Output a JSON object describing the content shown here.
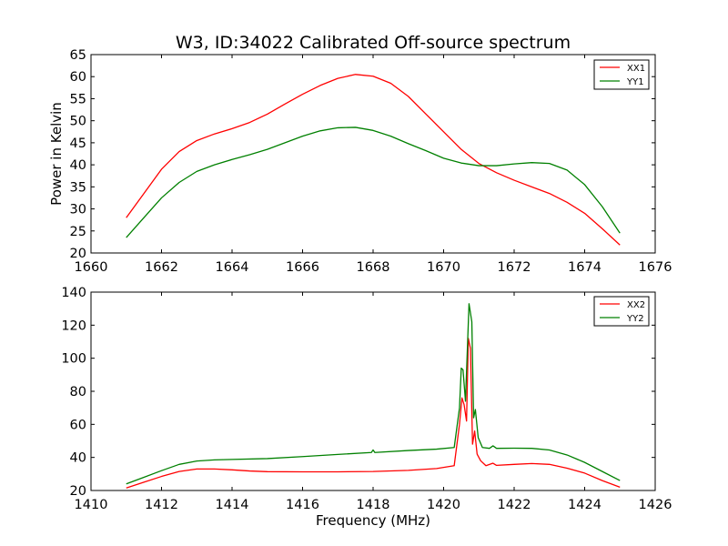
{
  "chart_data": [
    {
      "type": "line",
      "title": "W3, ID:34022 Calibrated Off-source spectrum",
      "xlabel": "",
      "ylabel": "Power in Kelvin",
      "xlim": [
        1660,
        1676
      ],
      "ylim": [
        20,
        65
      ],
      "xticks": [
        1660,
        1662,
        1664,
        1666,
        1668,
        1670,
        1672,
        1674,
        1676
      ],
      "yticks": [
        20,
        25,
        30,
        35,
        40,
        45,
        50,
        55,
        60,
        65
      ],
      "legend_position": "top-right",
      "series": [
        {
          "name": "XX1",
          "color": "#ff0000",
          "points": [
            [
              1661.0,
              28.0
            ],
            [
              1661.5,
              33.5
            ],
            [
              1662.0,
              39.0
            ],
            [
              1662.5,
              43.0
            ],
            [
              1663.0,
              45.5
            ],
            [
              1663.5,
              47.0
            ],
            [
              1664.0,
              48.2
            ],
            [
              1664.5,
              49.6
            ],
            [
              1665.0,
              51.5
            ],
            [
              1665.5,
              53.8
            ],
            [
              1666.0,
              56.0
            ],
            [
              1666.5,
              58.0
            ],
            [
              1667.0,
              59.6
            ],
            [
              1667.5,
              60.5
            ],
            [
              1668.0,
              60.1
            ],
            [
              1668.5,
              58.5
            ],
            [
              1669.0,
              55.5
            ],
            [
              1669.5,
              51.5
            ],
            [
              1670.0,
              47.5
            ],
            [
              1670.5,
              43.5
            ],
            [
              1671.0,
              40.3
            ],
            [
              1671.5,
              38.2
            ],
            [
              1672.0,
              36.5
            ],
            [
              1672.5,
              35.0
            ],
            [
              1673.0,
              33.5
            ],
            [
              1673.5,
              31.5
            ],
            [
              1674.0,
              29.0
            ],
            [
              1674.5,
              25.5
            ],
            [
              1675.0,
              21.8
            ]
          ]
        },
        {
          "name": "YY1",
          "color": "#008000",
          "points": [
            [
              1661.0,
              23.5
            ],
            [
              1661.5,
              28.0
            ],
            [
              1662.0,
              32.5
            ],
            [
              1662.5,
              36.0
            ],
            [
              1663.0,
              38.5
            ],
            [
              1663.5,
              40.0
            ],
            [
              1664.0,
              41.2
            ],
            [
              1664.5,
              42.3
            ],
            [
              1665.0,
              43.5
            ],
            [
              1665.5,
              45.0
            ],
            [
              1666.0,
              46.5
            ],
            [
              1666.5,
              47.7
            ],
            [
              1667.0,
              48.4
            ],
            [
              1667.5,
              48.5
            ],
            [
              1668.0,
              47.8
            ],
            [
              1668.5,
              46.5
            ],
            [
              1669.0,
              44.8
            ],
            [
              1669.5,
              43.2
            ],
            [
              1670.0,
              41.5
            ],
            [
              1670.5,
              40.4
            ],
            [
              1671.0,
              39.8
            ],
            [
              1671.5,
              39.8
            ],
            [
              1672.0,
              40.2
            ],
            [
              1672.5,
              40.5
            ],
            [
              1673.0,
              40.3
            ],
            [
              1673.5,
              38.8
            ],
            [
              1674.0,
              35.5
            ],
            [
              1674.5,
              30.5
            ],
            [
              1675.0,
              24.5
            ]
          ]
        }
      ]
    },
    {
      "type": "line",
      "title": "",
      "xlabel": "Frequency (MHz)",
      "ylabel": "",
      "xlim": [
        1410,
        1426
      ],
      "ylim": [
        20,
        140
      ],
      "xticks": [
        1410,
        1412,
        1414,
        1416,
        1418,
        1420,
        1422,
        1424,
        1426
      ],
      "yticks": [
        20,
        40,
        60,
        80,
        100,
        120,
        140
      ],
      "legend_position": "top-right",
      "series": [
        {
          "name": "XX2",
          "color": "#ff0000",
          "points": [
            [
              1411.0,
              21.5
            ],
            [
              1411.5,
              25.0
            ],
            [
              1412.0,
              28.5
            ],
            [
              1412.5,
              31.5
            ],
            [
              1413.0,
              33.0
            ],
            [
              1413.5,
              33.0
            ],
            [
              1414.0,
              32.5
            ],
            [
              1414.5,
              31.8
            ],
            [
              1415.0,
              31.4
            ],
            [
              1416.0,
              31.3
            ],
            [
              1417.0,
              31.3
            ],
            [
              1418.0,
              31.5
            ],
            [
              1419.0,
              32.2
            ],
            [
              1419.8,
              33.3
            ],
            [
              1420.3,
              35.0
            ],
            [
              1420.45,
              60.0
            ],
            [
              1420.52,
              76.0
            ],
            [
              1420.58,
              72.0
            ],
            [
              1420.65,
              62.0
            ],
            [
              1420.7,
              112.0
            ],
            [
              1420.76,
              106.0
            ],
            [
              1420.82,
              48.0
            ],
            [
              1420.88,
              56.0
            ],
            [
              1420.95,
              42.0
            ],
            [
              1421.05,
              38.0
            ],
            [
              1421.2,
              35.0
            ],
            [
              1421.4,
              36.5
            ],
            [
              1421.5,
              35.2
            ],
            [
              1422.0,
              35.8
            ],
            [
              1422.5,
              36.3
            ],
            [
              1423.0,
              35.8
            ],
            [
              1423.5,
              33.5
            ],
            [
              1424.0,
              30.5
            ],
            [
              1424.5,
              26.0
            ],
            [
              1425.0,
              22.0
            ]
          ]
        },
        {
          "name": "YY2",
          "color": "#008000",
          "points": [
            [
              1411.0,
              24.0
            ],
            [
              1411.5,
              28.0
            ],
            [
              1412.0,
              32.0
            ],
            [
              1412.5,
              35.8
            ],
            [
              1413.0,
              37.8
            ],
            [
              1413.5,
              38.5
            ],
            [
              1414.0,
              38.8
            ],
            [
              1415.0,
              39.3
            ],
            [
              1416.0,
              40.5
            ],
            [
              1417.0,
              41.8
            ],
            [
              1417.95,
              43.0
            ],
            [
              1418.0,
              44.5
            ],
            [
              1418.05,
              43.0
            ],
            [
              1419.0,
              44.2
            ],
            [
              1419.8,
              45.0
            ],
            [
              1420.3,
              46.0
            ],
            [
              1420.45,
              70.0
            ],
            [
              1420.5,
              94.0
            ],
            [
              1420.55,
              93.0
            ],
            [
              1420.62,
              74.0
            ],
            [
              1420.72,
              133.0
            ],
            [
              1420.8,
              122.0
            ],
            [
              1420.85,
              64.0
            ],
            [
              1420.9,
              69.0
            ],
            [
              1420.98,
              52.0
            ],
            [
              1421.1,
              46.0
            ],
            [
              1421.3,
              45.5
            ],
            [
              1421.4,
              47.0
            ],
            [
              1421.5,
              45.5
            ],
            [
              1422.0,
              45.6
            ],
            [
              1422.5,
              45.5
            ],
            [
              1423.0,
              44.5
            ],
            [
              1423.5,
              41.5
            ],
            [
              1424.0,
              37.0
            ],
            [
              1424.5,
              31.5
            ],
            [
              1425.0,
              26.0
            ]
          ]
        }
      ]
    }
  ]
}
